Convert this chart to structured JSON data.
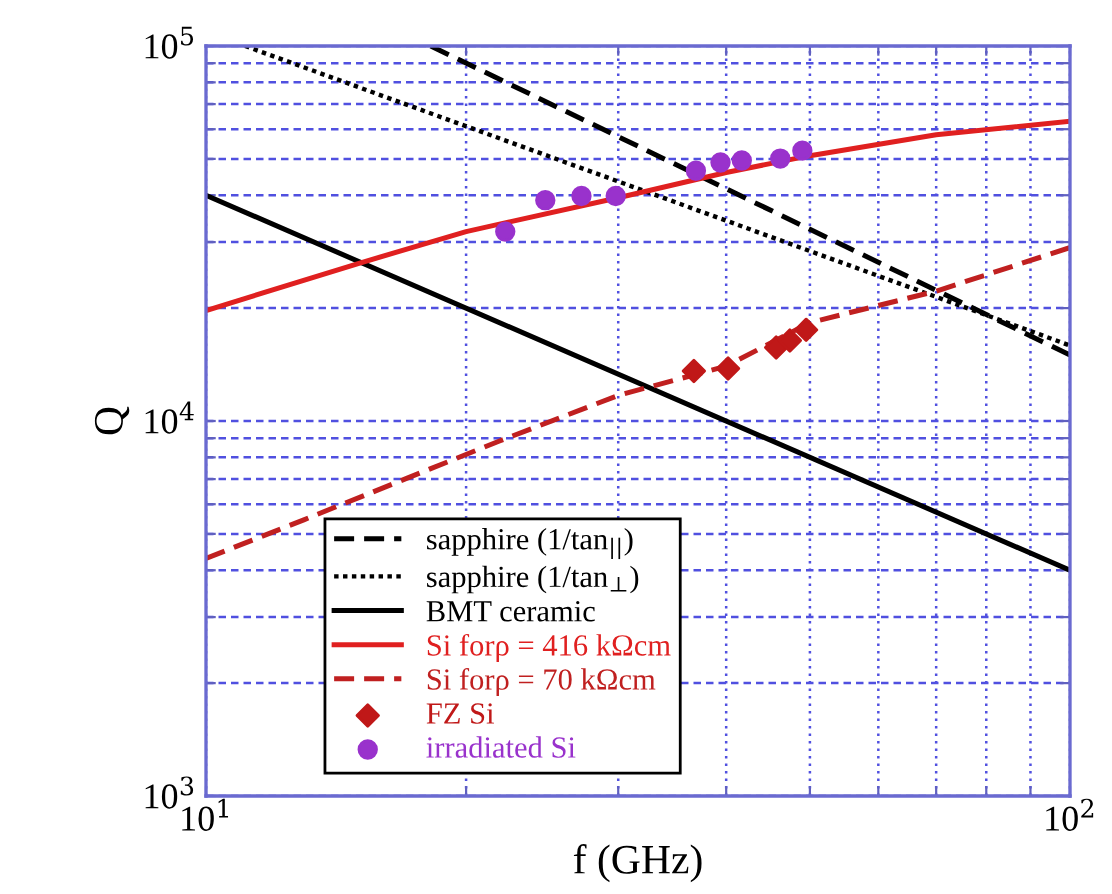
{
  "chart_data": {
    "type": "line",
    "xlabel": "f (GHz)",
    "ylabel": "Q",
    "log": "xy",
    "grid": true,
    "legend": "bottom left",
    "xlim": [
      10,
      100
    ],
    "ylim": [
      1000,
      100000
    ],
    "xticks": [
      {
        "value": 10,
        "label": "10$^{1}$"
      },
      {
        "value": 20,
        "label": null
      },
      {
        "value": 30,
        "label": null
      },
      {
        "value": 40,
        "label": null
      },
      {
        "value": 50,
        "label": null
      },
      {
        "value": 60,
        "label": null
      },
      {
        "value": 70,
        "label": null
      },
      {
        "value": 80,
        "label": null
      },
      {
        "value": 90,
        "label": null
      },
      {
        "value": 100,
        "label": "10$^{2}$"
      }
    ],
    "yticks": [
      {
        "value": 1000,
        "label": "10$^{3}$"
      },
      {
        "value": 2000,
        "label": null
      },
      {
        "value": 3000,
        "label": null
      },
      {
        "value": 4000,
        "label": null
      },
      {
        "value": 5000,
        "label": null
      },
      {
        "value": 6000,
        "label": null
      },
      {
        "value": 7000,
        "label": null
      },
      {
        "value": 8000,
        "label": null
      },
      {
        "value": 9000,
        "label": null
      },
      {
        "value": 10000,
        "label": "10$^{4}$"
      },
      {
        "value": 20000,
        "label": null
      },
      {
        "value": 30000,
        "label": null
      },
      {
        "value": 40000,
        "label": null
      },
      {
        "value": 50000,
        "label": null
      },
      {
        "value": 60000,
        "label": null
      },
      {
        "value": 70000,
        "label": null
      },
      {
        "value": 80000,
        "label": null
      },
      {
        "value": 90000,
        "label": null
      },
      {
        "value": 100000,
        "label": "10$^{5}$"
      }
    ],
    "series": [
      {
        "name": "sapphire (1/tan$_{||}$)",
        "line_style": "dashed",
        "color": "#000000",
        "x": [
          18.2,
          100
        ],
        "values": [
          100000,
          15000
        ]
      },
      {
        "name": "sapphire (1/tan$_{⊥}$)",
        "line_style": "dotted",
        "color": "#000000",
        "x": [
          11.1,
          100
        ],
        "values": [
          100000,
          15900
        ]
      },
      {
        "name": "BMT ceramic",
        "line_style": "solid",
        "color": "#000000",
        "x": [
          10,
          100
        ],
        "values": [
          40000,
          4000
        ]
      },
      {
        "name": "Si forρ = 416 kΩcm",
        "line_style": "solid",
        "color": "#e02020",
        "x": [
          10,
          15,
          20,
          30,
          40,
          50,
          70,
          100
        ],
        "values": [
          19700,
          26300,
          32000,
          39400,
          46000,
          51000,
          58000,
          63000
        ]
      },
      {
        "name": "Si forρ = 70 kΩcm",
        "line_style": "dashed",
        "color": "#c02020",
        "x": [
          10,
          13,
          21.9,
          30,
          40,
          50,
          70,
          100
        ],
        "values": [
          4300,
          5460,
          8860,
          11700,
          14000,
          18300,
          22200,
          29000
        ]
      },
      {
        "name": "FZ Si",
        "type": "scatter",
        "marker": "diamond",
        "color": "#c01818",
        "x": [
          36.7,
          40.2,
          45.7,
          47.4,
          49.5
        ],
        "values": [
          13600,
          13800,
          15700,
          16400,
          17500
        ]
      },
      {
        "name": "irradiated Si",
        "type": "scatter",
        "marker": "circle",
        "color": "#9932cc",
        "x": [
          22.2,
          24.7,
          27.2,
          29.8,
          36.9,
          39.4,
          41.7,
          46.2,
          49.0
        ],
        "values": [
          32000,
          38800,
          39800,
          39800,
          46500,
          48900,
          49500,
          50100,
          52600
        ]
      }
    ]
  }
}
